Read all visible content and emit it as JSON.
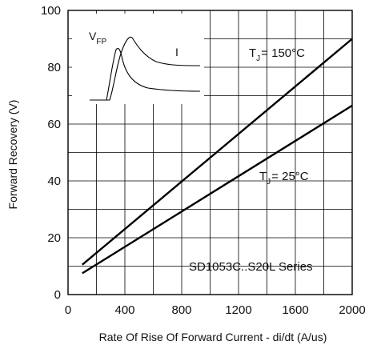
{
  "chart_data": {
    "type": "line",
    "xlabel": "Rate Of Rise Of Forward Current - di/dt (A/us)",
    "ylabel": "Forward Recovery (V)",
    "xlim": [
      0,
      2000
    ],
    "ylim": [
      0,
      100
    ],
    "x_ticks": [
      "0",
      "400",
      "800",
      "1200",
      "1600",
      "2000"
    ],
    "y_ticks": [
      "0",
      "20",
      "40",
      "60",
      "80",
      "100"
    ],
    "grid": true,
    "series": [
      {
        "name_main": "T",
        "name_sub": "J",
        "name_rest": "= 150°C",
        "x": [
          100,
          2000
        ],
        "y": [
          10.5,
          90
        ],
        "color": "#000000"
      },
      {
        "name_main": "T",
        "name_sub": "J",
        "name_rest": "= 25°C",
        "x": [
          100,
          2000
        ],
        "y": [
          7.5,
          66.5
        ],
        "color": "#000000"
      }
    ],
    "annotation": "SD1053C..S20L Series",
    "inset": {
      "vfp_main": "V",
      "vfp_sub": "FP",
      "current_label": "I"
    }
  }
}
